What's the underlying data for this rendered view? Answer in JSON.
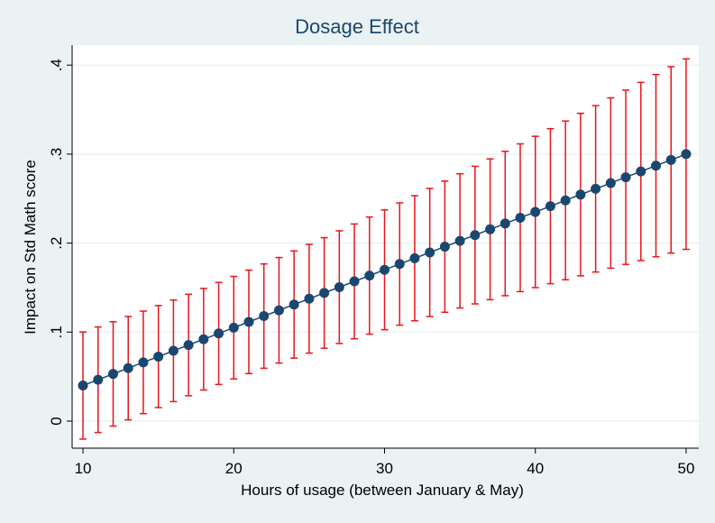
{
  "chart_data": {
    "type": "errorbar",
    "title": "Dosage Effect",
    "x_label": "Hours of usage (between January & May)",
    "y_label": "Impact on Std Math score",
    "x": [
      10,
      11,
      12,
      13,
      14,
      15,
      16,
      17,
      18,
      19,
      20,
      21,
      22,
      23,
      24,
      25,
      26,
      27,
      28,
      29,
      30,
      31,
      32,
      33,
      34,
      35,
      36,
      37,
      38,
      39,
      40,
      41,
      42,
      43,
      44,
      45,
      46,
      47,
      48,
      49,
      50
    ],
    "values": [
      0.04,
      0.0465,
      0.053,
      0.0595,
      0.066,
      0.0725,
      0.079,
      0.0855,
      0.092,
      0.0985,
      0.105,
      0.1115,
      0.118,
      0.1245,
      0.131,
      0.1375,
      0.144,
      0.1505,
      0.157,
      0.1635,
      0.17,
      0.1765,
      0.183,
      0.1895,
      0.196,
      0.2025,
      0.209,
      0.2155,
      0.222,
      0.2285,
      0.235,
      0.2415,
      0.248,
      0.2545,
      0.261,
      0.2675,
      0.274,
      0.2805,
      0.287,
      0.2935,
      0.3
    ],
    "errors": [
      0.0602,
      0.0593,
      0.0586,
      0.0581,
      0.0576,
      0.0573,
      0.0571,
      0.057,
      0.0571,
      0.0573,
      0.0576,
      0.0581,
      0.0586,
      0.0593,
      0.0602,
      0.0611,
      0.0621,
      0.0633,
      0.0645,
      0.0658,
      0.0673,
      0.0687,
      0.0703,
      0.072,
      0.0737,
      0.0754,
      0.0773,
      0.0791,
      0.0811,
      0.083,
      0.085,
      0.0871,
      0.0892,
      0.0913,
      0.0935,
      0.0957,
      0.0979,
      0.1001,
      0.1024,
      0.1047,
      0.107
    ],
    "color": "#1a476f",
    "error_color": "#e8141c",
    "xlim": [
      9.28,
      50.84
    ],
    "ylim": [
      -0.0304,
      0.4225
    ],
    "xticks": [
      10,
      20,
      30,
      40,
      50
    ],
    "yticks": [
      0,
      {
        "value": 0.1,
        "label": ".1"
      },
      {
        "value": 0.2,
        "label": ".2"
      },
      {
        "value": 0.3,
        "label": ".3"
      },
      {
        "value": 0.4,
        "label": ".4"
      }
    ],
    "grid": true
  }
}
